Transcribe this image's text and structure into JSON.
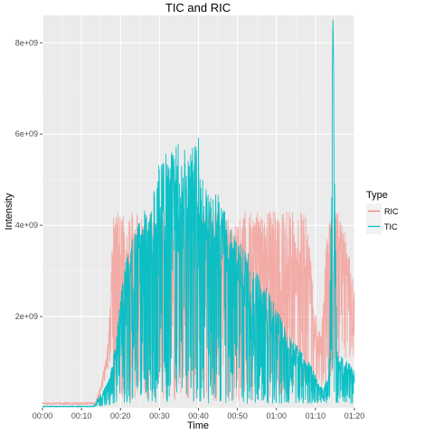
{
  "chart_data": {
    "type": "line",
    "title": "TIC and RIC",
    "xlabel": "Time",
    "ylabel": "Intensity",
    "xlim_minutes": [
      0,
      80
    ],
    "ylim": [
      0,
      8600000000
    ],
    "x_ticks": [
      {
        "minutes": 0,
        "label": "00:00"
      },
      {
        "minutes": 10,
        "label": "00:10"
      },
      {
        "minutes": 20,
        "label": "00:20"
      },
      {
        "minutes": 30,
        "label": "00:30"
      },
      {
        "minutes": 40,
        "label": "00:40"
      },
      {
        "minutes": 50,
        "label": "00:50"
      },
      {
        "minutes": 60,
        "label": "01:00"
      },
      {
        "minutes": 70,
        "label": "01:10"
      },
      {
        "minutes": 80,
        "label": "01:20"
      }
    ],
    "y_ticks": [
      {
        "value": 2000000000,
        "label": "2e+09"
      },
      {
        "value": 4000000000,
        "label": "4e+09"
      },
      {
        "value": 6000000000,
        "label": "6e+09"
      },
      {
        "value": 8000000000,
        "label": "8e+09"
      }
    ],
    "grid": true,
    "legend": {
      "title": "Type",
      "position": "right"
    },
    "series": [
      {
        "name": "RIC",
        "color": "#F8766D",
        "envelope_x_minutes": [
          0,
          13.5,
          15,
          16.5,
          17.5,
          18,
          19,
          20,
          22,
          25,
          30,
          35,
          40,
          45,
          50,
          55,
          57,
          59,
          60,
          62,
          64,
          66,
          67.5,
          68.5,
          69.5,
          70.5,
          71.5,
          73,
          74.5,
          76,
          78,
          80
        ],
        "envelope_upper": [
          120000000,
          120000000,
          500000000,
          1200000000,
          2500000000,
          4200000000,
          4300000000,
          4300000000,
          4300000000,
          4300000000,
          4300000000,
          4300000000,
          4300000000,
          4300000000,
          4300000000,
          4300000000,
          4300000000,
          4300000000,
          4300000000,
          4300000000,
          4300000000,
          4300000000,
          4300000000,
          3500000000,
          2500000000,
          1800000000,
          1600000000,
          4300000000,
          4300000000,
          4300000000,
          3700000000,
          2600000000
        ],
        "envelope_lower": [
          70000000,
          70000000,
          300000000,
          800000000,
          1000000000,
          600000000,
          200000000,
          150000000,
          150000000,
          150000000,
          150000000,
          150000000,
          150000000,
          150000000,
          150000000,
          150000000,
          180000000,
          220000000,
          250000000,
          300000000,
          350000000,
          450000000,
          600000000,
          550000000,
          500000000,
          450000000,
          400000000,
          500000000,
          800000000,
          1000000000,
          1100000000,
          1100000000
        ]
      },
      {
        "name": "TIC",
        "color": "#00BFC4",
        "envelope_x_minutes": [
          0,
          13,
          15,
          17,
          18,
          19,
          20,
          22,
          25,
          28,
          30,
          32,
          34,
          36,
          38,
          40,
          42,
          45,
          48,
          50,
          53,
          55,
          57,
          60,
          62,
          64,
          66,
          67.5,
          68.5,
          70,
          72,
          73.5,
          74.5,
          75.5,
          77,
          80
        ],
        "envelope_upper": [
          40000000,
          40000000,
          300000000,
          600000000,
          1000000000,
          1600000000,
          2500000000,
          3500000000,
          4200000000,
          4600000000,
          5500000000,
          5600000000,
          5900000000,
          5600000000,
          5800000000,
          6200000000,
          4800000000,
          4700000000,
          4000000000,
          3700000000,
          3400000000,
          3000000000,
          2700000000,
          2200000000,
          1800000000,
          1500000000,
          1300000000,
          1100000000,
          1000000000,
          700000000,
          400000000,
          900000000,
          8600000000,
          1300000000,
          1100000000,
          900000000
        ],
        "envelope_lower": [
          20000000,
          20000000,
          40000000,
          60000000,
          80000000,
          100000000,
          100000000,
          100000000,
          100000000,
          100000000,
          100000000,
          100000000,
          100000000,
          100000000,
          100000000,
          100000000,
          100000000,
          100000000,
          100000000,
          100000000,
          100000000,
          100000000,
          100000000,
          100000000,
          100000000,
          100000000,
          100000000,
          100000000,
          100000000,
          100000000,
          100000000,
          100000000,
          100000000,
          100000000,
          100000000,
          100000000
        ]
      }
    ]
  }
}
